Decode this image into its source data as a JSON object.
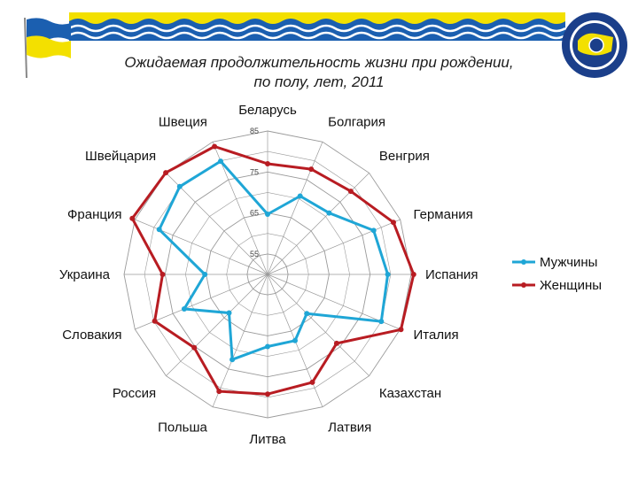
{
  "title_line1": "Ожидаемая продолжительность жизни при рождении,",
  "title_line2": "по полу, лет, 2011",
  "colors": {
    "men": "#1fa6d6",
    "women": "#b81c22",
    "grid": "#9a9a9a",
    "banner_blue": "#1b5fb0",
    "banner_yellow": "#f3e000"
  },
  "chart_data": {
    "type": "radar",
    "title": "Ожидаемая продолжительность жизни при рождении, по полу, лет, 2011",
    "categories": [
      "Беларусь",
      "Болгария",
      "Венгрия",
      "Германия",
      "Испания",
      "Италия",
      "Казахстан",
      "Латвия",
      "Литва",
      "Польша",
      "Россия",
      "Словакия",
      "Украина",
      "Франция",
      "Швейцария",
      "Швеция"
    ],
    "rlim": [
      50,
      85
    ],
    "ticks": [
      55,
      65,
      75,
      85
    ],
    "series": [
      {
        "name": "Мужчины",
        "values": [
          64.7,
          70.7,
          71.2,
          78.0,
          79.3,
          80.0,
          63.5,
          67.5,
          67.6,
          72.5,
          63.3,
          72.0,
          65.3,
          78.6,
          80.3,
          79.9
        ]
      },
      {
        "name": "Женщины",
        "values": [
          77.0,
          77.8,
          78.7,
          83.2,
          85.6,
          85.2,
          73.8,
          78.5,
          79.2,
          80.9,
          75.3,
          79.8,
          75.6,
          85.7,
          85.1,
          83.8
        ]
      }
    ],
    "legend_position": "right"
  }
}
